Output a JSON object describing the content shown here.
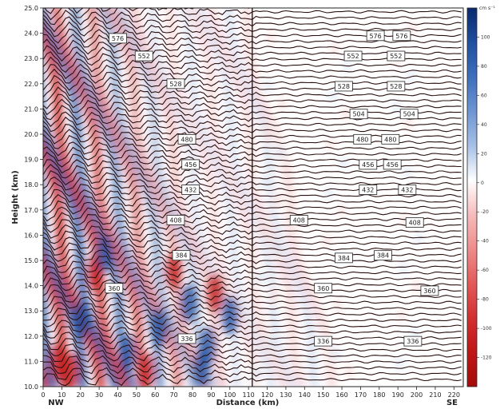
{
  "chart_data": {
    "type": "heatmap",
    "xlabel": "Distance (km)",
    "ylabel": "Height (km)",
    "xlim": [
      0,
      225
    ],
    "ylim": [
      10.0,
      25.0
    ],
    "x_ticks": [
      0,
      10,
      20,
      30,
      40,
      50,
      60,
      70,
      80,
      90,
      100,
      110,
      120,
      130,
      140,
      150,
      160,
      170,
      180,
      190,
      200,
      210,
      220
    ],
    "y_ticks": [
      "10.0",
      "11.0",
      "12.0",
      "13.0",
      "14.0",
      "15.0",
      "16.0",
      "17.0",
      "18.0",
      "19.0",
      "20.0",
      "21.0",
      "22.0",
      "23.0",
      "24.0",
      "25.0"
    ],
    "x_end_labels": {
      "left": "NW",
      "right": "SE"
    },
    "vertical_line_x": 112,
    "colorbar": {
      "unit": "cm s⁻¹",
      "ticks": [
        100,
        80,
        60,
        40,
        20,
        0,
        -20,
        -40,
        -60,
        -80,
        -100,
        -120
      ],
      "colors": [
        "#0b2a6e",
        "#1f4fa0",
        "#3d6fbd",
        "#6e95d2",
        "#a6c0e6",
        "#ffffff",
        "#f6bcbc",
        "#ef8c8c",
        "#e35a5a",
        "#d33030",
        "#c01616",
        "#a50a0a"
      ]
    },
    "contour_labels": [
      {
        "value": "576",
        "x": 40,
        "y": 23.8
      },
      {
        "value": "576",
        "x": 178,
        "y": 23.9
      },
      {
        "value": "576",
        "x": 192,
        "y": 23.9
      },
      {
        "value": "552",
        "x": 54,
        "y": 23.1
      },
      {
        "value": "552",
        "x": 166,
        "y": 23.1
      },
      {
        "value": "552",
        "x": 189,
        "y": 23.1
      },
      {
        "value": "528",
        "x": 71,
        "y": 22.0
      },
      {
        "value": "528",
        "x": 161,
        "y": 21.9
      },
      {
        "value": "528",
        "x": 189,
        "y": 21.9
      },
      {
        "value": "504",
        "x": 169,
        "y": 20.8
      },
      {
        "value": "504",
        "x": 196,
        "y": 20.8
      },
      {
        "value": "480",
        "x": 77,
        "y": 19.8
      },
      {
        "value": "480",
        "x": 171,
        "y": 19.8
      },
      {
        "value": "480",
        "x": 186,
        "y": 19.8
      },
      {
        "value": "456",
        "x": 79,
        "y": 18.8
      },
      {
        "value": "456",
        "x": 174,
        "y": 18.8
      },
      {
        "value": "456",
        "x": 187,
        "y": 18.8
      },
      {
        "value": "432",
        "x": 79,
        "y": 17.8
      },
      {
        "value": "432",
        "x": 174,
        "y": 17.8
      },
      {
        "value": "432",
        "x": 195,
        "y": 17.8
      },
      {
        "value": "408",
        "x": 71,
        "y": 16.6
      },
      {
        "value": "408",
        "x": 137,
        "y": 16.6
      },
      {
        "value": "408",
        "x": 199,
        "y": 16.5
      },
      {
        "value": "384",
        "x": 74,
        "y": 15.2
      },
      {
        "value": "384",
        "x": 161,
        "y": 15.1
      },
      {
        "value": "384",
        "x": 182,
        "y": 15.2
      },
      {
        "value": "360",
        "x": 38,
        "y": 13.9
      },
      {
        "value": "360",
        "x": 150,
        "y": 13.9
      },
      {
        "value": "360",
        "x": 207,
        "y": 13.8
      },
      {
        "value": "336",
        "x": 77,
        "y": 11.9
      },
      {
        "value": "336",
        "x": 150,
        "y": 11.8
      },
      {
        "value": "336",
        "x": 198,
        "y": 11.8
      }
    ]
  }
}
